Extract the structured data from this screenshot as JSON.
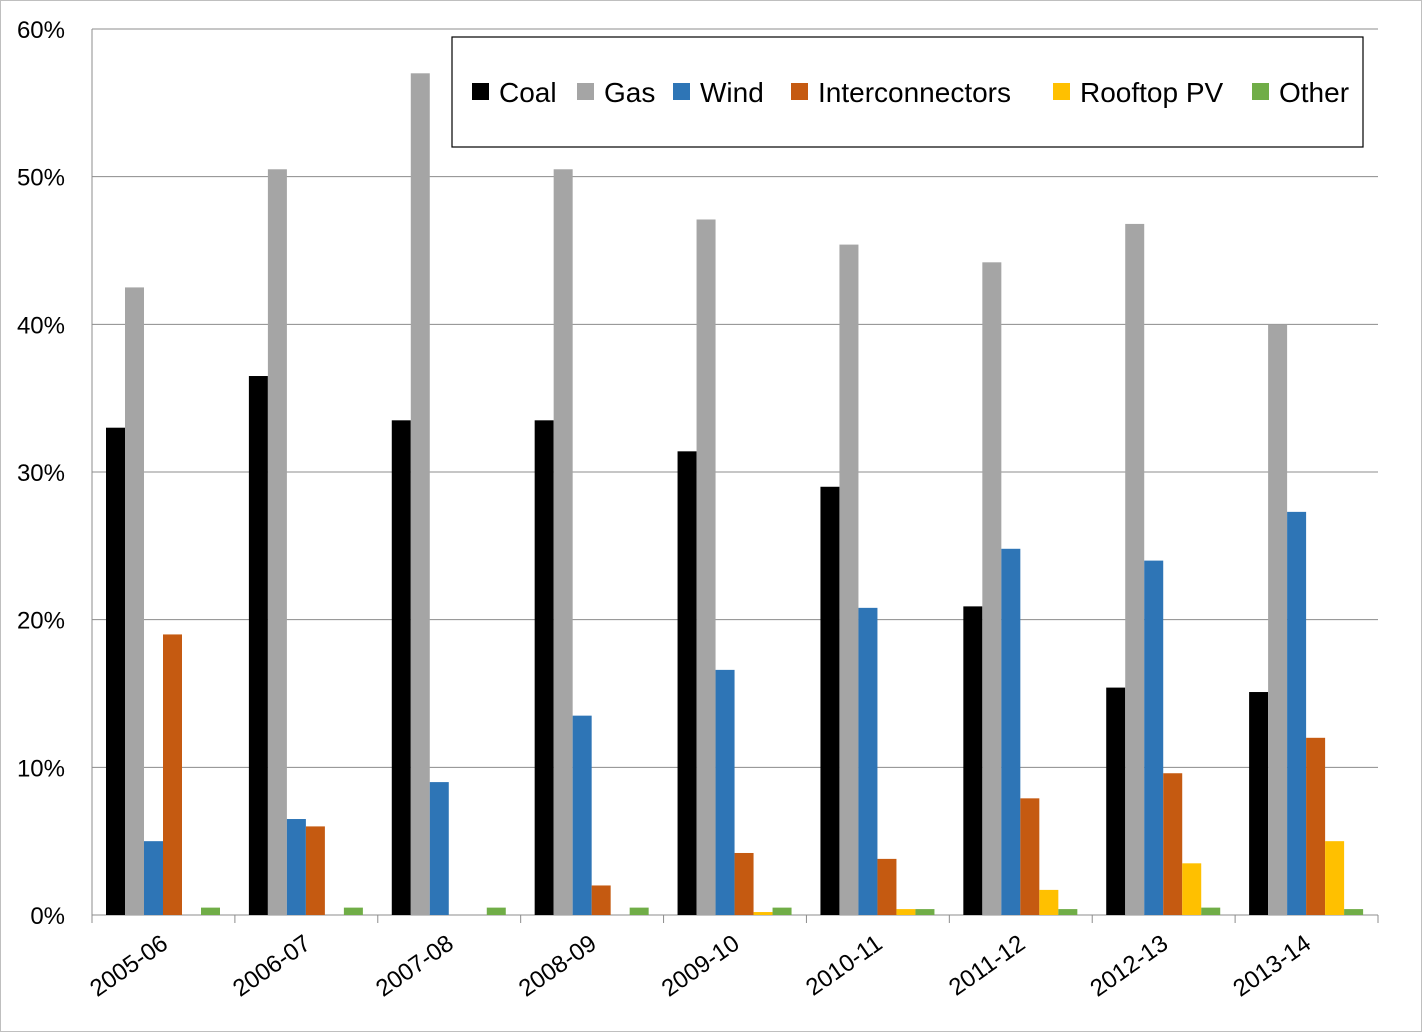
{
  "chart_data": {
    "type": "bar",
    "title": "",
    "xlabel": "",
    "ylabel": "",
    "ylim": [
      0,
      60
    ],
    "yticks": [
      0,
      10,
      20,
      30,
      40,
      50,
      60
    ],
    "ytick_labels": [
      "0%",
      "10%",
      "20%",
      "30%",
      "40%",
      "50%",
      "60%"
    ],
    "grid": true,
    "legend_position": "top-right",
    "categories": [
      "2005-06",
      "2006-07",
      "2007-08",
      "2008-09",
      "2009-10",
      "2010-11",
      "2011-12",
      "2012-13",
      "2013-14"
    ],
    "series": [
      {
        "name": "Coal",
        "color": "#000000",
        "values": [
          33.0,
          36.5,
          33.5,
          33.5,
          31.4,
          29.0,
          20.9,
          15.4,
          15.1
        ]
      },
      {
        "name": "Gas",
        "color": "#a5a5a5",
        "values": [
          42.5,
          50.5,
          57.0,
          50.5,
          47.1,
          45.4,
          44.2,
          46.8,
          40.0
        ]
      },
      {
        "name": "Wind",
        "color": "#2e75b6",
        "values": [
          5.0,
          6.5,
          9.0,
          13.5,
          16.6,
          20.8,
          24.8,
          24.0,
          27.3
        ]
      },
      {
        "name": "Interconnectors",
        "color": "#c55a11",
        "values": [
          19.0,
          6.0,
          0,
          2.0,
          4.2,
          3.8,
          7.9,
          9.6,
          12.0
        ]
      },
      {
        "name": "Rooftop PV",
        "color": "#ffc000",
        "values": [
          0,
          0,
          0,
          0,
          0.2,
          0.4,
          1.7,
          3.5,
          5.0
        ]
      },
      {
        "name": "Other",
        "color": "#70ad47",
        "values": [
          0.5,
          0.5,
          0.5,
          0.5,
          0.5,
          0.4,
          0.4,
          0.5,
          0.4
        ]
      }
    ]
  }
}
